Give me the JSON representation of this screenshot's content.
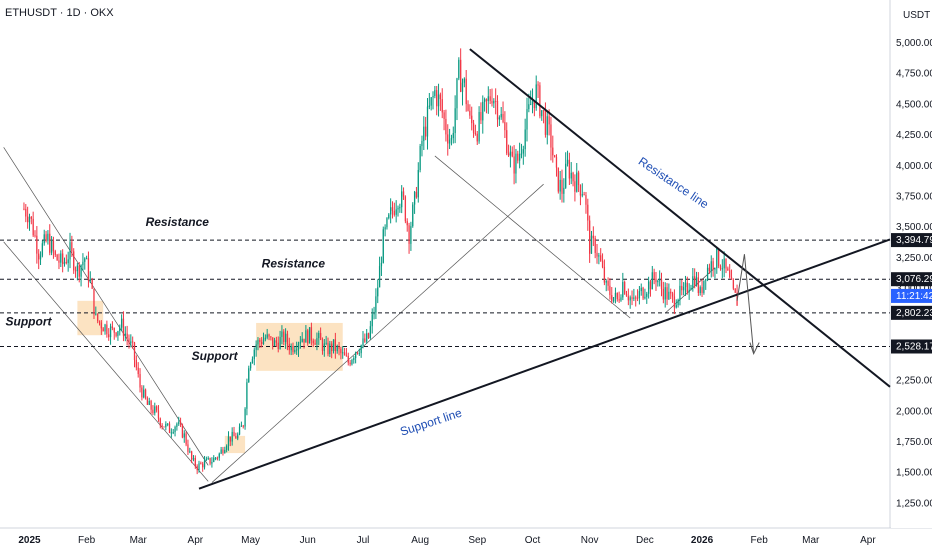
{
  "chart_data": {
    "type": "candlestick",
    "symbol_label": "ETHUSDT · 1D · OKX",
    "currency_label": "USDT",
    "ylim": [
      1050,
      5350
    ],
    "y_ticks": [
      {
        "v": 5000,
        "label": "5,000.00"
      },
      {
        "v": 4750,
        "label": "4,750.00"
      },
      {
        "v": 4500,
        "label": "4,500.00"
      },
      {
        "v": 4250,
        "label": "4,250.00"
      },
      {
        "v": 4000,
        "label": "4,000.00"
      },
      {
        "v": 3750,
        "label": "3,750.00"
      },
      {
        "v": 3500,
        "label": "3,500.00"
      },
      {
        "v": 3250,
        "label": "3,250.00"
      },
      {
        "v": 3000,
        "label": "3,000.00"
      },
      {
        "v": 2250,
        "label": "2,250.00"
      },
      {
        "v": 2000,
        "label": "2,000.00"
      },
      {
        "v": 1750,
        "label": "1,750.00"
      },
      {
        "v": 1500,
        "label": "1,500.00"
      },
      {
        "v": 1250,
        "label": "1,250.00"
      }
    ],
    "x_ticks": [
      {
        "d": 0,
        "label": "2025",
        "bold": true
      },
      {
        "d": 31,
        "label": "Feb"
      },
      {
        "d": 59,
        "label": "Mar"
      },
      {
        "d": 90,
        "label": "Apr"
      },
      {
        "d": 120,
        "label": "May"
      },
      {
        "d": 151,
        "label": "Jun"
      },
      {
        "d": 181,
        "label": "Jul"
      },
      {
        "d": 212,
        "label": "Aug"
      },
      {
        "d": 243,
        "label": "Sep"
      },
      {
        "d": 273,
        "label": "Oct"
      },
      {
        "d": 304,
        "label": "Nov"
      },
      {
        "d": 334,
        "label": "Dec"
      },
      {
        "d": 365,
        "label": "2026",
        "bold": true
      },
      {
        "d": 396,
        "label": "Feb"
      },
      {
        "d": 424,
        "label": "Mar"
      },
      {
        "d": 455,
        "label": "Apr"
      }
    ],
    "x_day_range": [
      -16,
      467
    ],
    "price_path": [
      [
        -3,
        3650
      ],
      [
        0,
        3600
      ],
      [
        5,
        3300
      ],
      [
        10,
        3400
      ],
      [
        14,
        3250
      ],
      [
        18,
        3200
      ],
      [
        22,
        3300
      ],
      [
        26,
        3150
      ],
      [
        30,
        3250
      ],
      [
        33,
        3050
      ],
      [
        36,
        2750
      ],
      [
        40,
        2700
      ],
      [
        45,
        2650
      ],
      [
        50,
        2700
      ],
      [
        56,
        2500
      ],
      [
        60,
        2200
      ],
      [
        64,
        2050
      ],
      [
        68,
        2000
      ],
      [
        72,
        1900
      ],
      [
        76,
        1850
      ],
      [
        80,
        1900
      ],
      [
        84,
        1800
      ],
      [
        88,
        1600
      ],
      [
        91,
        1550
      ],
      [
        95,
        1580
      ],
      [
        99,
        1600
      ],
      [
        103,
        1650
      ],
      [
        108,
        1780
      ],
      [
        113,
        1800
      ],
      [
        116,
        1900
      ],
      [
        119,
        2400
      ],
      [
        123,
        2550
      ],
      [
        128,
        2600
      ],
      [
        133,
        2550
      ],
      [
        138,
        2600
      ],
      [
        142,
        2520
      ],
      [
        147,
        2600
      ],
      [
        152,
        2620
      ],
      [
        157,
        2580
      ],
      [
        161,
        2500
      ],
      [
        165,
        2530
      ],
      [
        170,
        2450
      ],
      [
        173,
        2400
      ],
      [
        177,
        2500
      ],
      [
        181,
        2550
      ],
      [
        184,
        2600
      ],
      [
        188,
        2900
      ],
      [
        192,
        3400
      ],
      [
        196,
        3600
      ],
      [
        200,
        3750
      ],
      [
        203,
        3700
      ],
      [
        206,
        3450
      ],
      [
        209,
        3700
      ],
      [
        213,
        4200
      ],
      [
        217,
        4450
      ],
      [
        220,
        4600
      ],
      [
        223,
        4500
      ],
      [
        226,
        4300
      ],
      [
        229,
        4200
      ],
      [
        233,
        4750
      ],
      [
        236,
        4650
      ],
      [
        239,
        4350
      ],
      [
        243,
        4300
      ],
      [
        247,
        4450
      ],
      [
        251,
        4600
      ],
      [
        255,
        4450
      ],
      [
        259,
        4200
      ],
      [
        262,
        4000
      ],
      [
        265,
        4050
      ],
      [
        269,
        4300
      ],
      [
        272,
        4500
      ],
      [
        275,
        4600
      ],
      [
        279,
        4400
      ],
      [
        283,
        4200
      ],
      [
        286,
        3900
      ],
      [
        289,
        3800
      ],
      [
        292,
        4000
      ],
      [
        295,
        3900
      ],
      [
        298,
        3850
      ],
      [
        301,
        3800
      ],
      [
        304,
        3350
      ],
      [
        307,
        3350
      ],
      [
        310,
        3200
      ],
      [
        313,
        3000
      ],
      [
        316,
        2950
      ],
      [
        319,
        2900
      ],
      [
        322,
        3050
      ],
      [
        325,
        2950
      ],
      [
        328,
        2880
      ],
      [
        331,
        2950
      ],
      [
        334,
        3000
      ],
      [
        337,
        3050
      ],
      [
        340,
        3100
      ],
      [
        343,
        3000
      ],
      [
        346,
        2950
      ],
      [
        349,
        2900
      ],
      [
        352,
        2950
      ],
      [
        355,
        2950
      ],
      [
        358,
        3050
      ],
      [
        361,
        3100
      ],
      [
        364,
        2950
      ],
      [
        367,
        3150
      ],
      [
        370,
        3200
      ],
      [
        373,
        3250
      ],
      [
        376,
        3200
      ],
      [
        379,
        3100
      ],
      [
        382,
        2950
      ],
      [
        384,
        2900
      ]
    ],
    "annotations": {
      "resistance_levels": [
        3394.79,
        3076.29
      ],
      "support_levels": [
        2802.23,
        2528.17
      ],
      "level_labels": [
        "3,394.79",
        "3,076.29",
        "2,802.23",
        "2,528.17"
      ],
      "current_price_label": "11:21:42",
      "texts": [
        "Resistance",
        "Resistance",
        "Support",
        "Support",
        "Resistance line",
        "Support line"
      ],
      "support_line": [
        [
          92,
          1370
        ],
        [
          467,
          3400
        ]
      ],
      "resistance_line": [
        [
          239,
          4950
        ],
        [
          467,
          2200
        ]
      ]
    }
  }
}
